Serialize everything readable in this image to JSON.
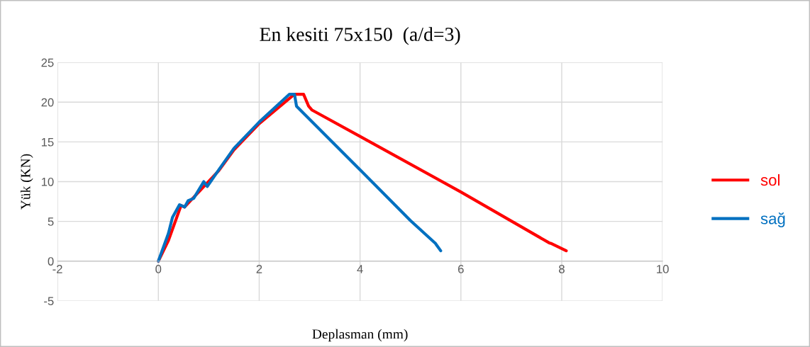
{
  "chart_data": {
    "type": "line",
    "title": "En kesiti 75x150  (a/d=3)",
    "xlabel": "Deplasman (mm)",
    "ylabel": "Yük (KN)",
    "xlim": [
      -2,
      10
    ],
    "ylim": [
      -5,
      25
    ],
    "xticks": [
      -2,
      0,
      2,
      4,
      6,
      8,
      10
    ],
    "yticks": [
      -5,
      0,
      5,
      10,
      15,
      20,
      25
    ],
    "grid": true,
    "legend": "right",
    "marker": "none",
    "line_style": "solid",
    "series": [
      {
        "name": "sol",
        "color": "#ff0000",
        "x": [
          0,
          0.2,
          0.45,
          0.52,
          1.2,
          1.5,
          2.0,
          2.66,
          2.7,
          2.88,
          2.98,
          3.05,
          4.0,
          6.0,
          7.75,
          7.8,
          8.09
        ],
        "values": [
          0,
          2.6,
          7.0,
          6.8,
          11.4,
          14.0,
          17.3,
          20.8,
          21,
          21,
          19.5,
          19.0,
          15.7,
          8.7,
          2.3,
          2.2,
          1.3
        ]
      },
      {
        "name": "sağ",
        "color": "#0070c0",
        "x": [
          0,
          0.2,
          0.28,
          0.42,
          0.52,
          0.59,
          0.7,
          0.9,
          0.97,
          1.2,
          1.5,
          2.0,
          2.6,
          2.66,
          2.7,
          2.74,
          4.0,
          5.0,
          5.5,
          5.52,
          5.6
        ],
        "values": [
          0,
          3.5,
          5.5,
          7.1,
          6.8,
          7.6,
          7.9,
          10.0,
          9.4,
          11.5,
          14.2,
          17.5,
          21,
          21,
          21,
          19.5,
          11.5,
          5.1,
          2.2,
          2.0,
          1.3
        ]
      }
    ]
  }
}
